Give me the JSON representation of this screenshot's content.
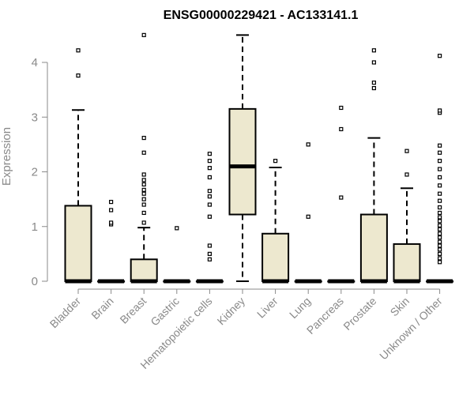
{
  "chart_data": {
    "type": "box",
    "title": "ENSG00000229421 - AC133141.1",
    "ylabel": "Expression",
    "xlabel": "",
    "ylim": [
      0,
      4.5
    ],
    "yticks": [
      0,
      1,
      2,
      3,
      4
    ],
    "box_fill": "#ede8cf",
    "categories": [
      "Bladder",
      "Brain",
      "Breast",
      "Gastric",
      "Hematopoietic cells",
      "Kidney",
      "Liver",
      "Lung",
      "Pancreas",
      "Prostate",
      "Skin",
      "Unknown / Other"
    ],
    "boxes": [
      {
        "min": 0,
        "q1": 0,
        "median": 0,
        "q3": 1.38,
        "max": 3.13,
        "outliers": [
          3.76,
          4.22
        ]
      },
      {
        "min": 0,
        "q1": 0,
        "median": 0,
        "q3": 0,
        "max": 0,
        "outliers": [
          1.04,
          1.07,
          1.3,
          1.45
        ]
      },
      {
        "min": 0,
        "q1": 0,
        "median": 0,
        "q3": 0.4,
        "max": 0.98,
        "outliers": [
          1.07,
          1.25,
          1.4,
          1.5,
          1.6,
          1.67,
          1.77,
          1.85,
          1.95,
          2.35,
          2.62,
          4.5
        ]
      },
      {
        "min": 0,
        "q1": 0,
        "median": 0,
        "q3": 0,
        "max": 0,
        "outliers": [
          0.97
        ]
      },
      {
        "min": 0,
        "q1": 0,
        "median": 0,
        "q3": 0,
        "max": 0,
        "outliers": [
          0.4,
          0.5,
          0.65,
          1.18,
          1.4,
          1.55,
          1.65,
          1.9,
          2.07,
          2.2,
          2.33
        ]
      },
      {
        "min": 0,
        "q1": 1.22,
        "median": 2.1,
        "q3": 3.15,
        "max": 4.5,
        "outliers": []
      },
      {
        "min": 0,
        "q1": 0,
        "median": 0,
        "q3": 0.87,
        "max": 2.08,
        "outliers": [
          2.2
        ]
      },
      {
        "min": 0,
        "q1": 0,
        "median": 0,
        "q3": 0,
        "max": 0,
        "outliers": [
          1.18,
          2.5
        ]
      },
      {
        "min": 0,
        "q1": 0,
        "median": 0,
        "q3": 0,
        "max": 0,
        "outliers": [
          1.53,
          2.78,
          3.17
        ]
      },
      {
        "min": 0,
        "q1": 0,
        "median": 0,
        "q3": 1.22,
        "max": 2.62,
        "outliers": [
          3.53,
          3.63,
          4.0,
          4.22
        ]
      },
      {
        "min": 0,
        "q1": 0,
        "median": 0,
        "q3": 0.68,
        "max": 1.7,
        "outliers": [
          1.95,
          2.38
        ]
      },
      {
        "min": 0,
        "q1": 0,
        "median": 0,
        "q3": 0,
        "max": 0,
        "outliers": [
          0.35,
          0.42,
          0.5,
          0.58,
          0.65,
          0.72,
          0.8,
          0.87,
          0.95,
          1.02,
          1.1,
          1.17,
          1.25,
          1.35,
          1.47,
          1.6,
          1.75,
          1.9,
          2.05,
          2.2,
          2.35,
          2.48,
          3.08,
          3.12,
          4.12
        ]
      }
    ]
  }
}
